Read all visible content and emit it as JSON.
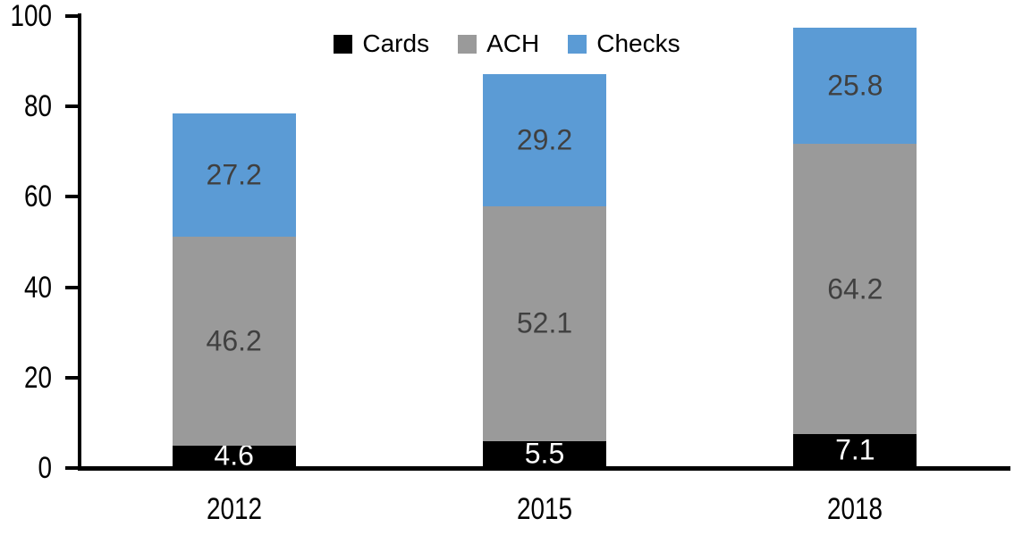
{
  "chart_data": {
    "type": "bar",
    "stacked": true,
    "title": "",
    "xlabel": "",
    "ylabel": "",
    "categories": [
      "2012",
      "2015",
      "2018"
    ],
    "series": [
      {
        "name": "Cards",
        "color": "#000000",
        "label_color": "#FFFFFF",
        "values": [
          4.6,
          5.5,
          7.1
        ]
      },
      {
        "name": "ACH",
        "color": "#9A9A9A",
        "label_color": "#404040",
        "values": [
          46.2,
          52.1,
          64.2
        ]
      },
      {
        "name": "Checks",
        "color": "#5B9BD5",
        "label_color": "#404040",
        "values": [
          27.2,
          29.2,
          25.8
        ]
      }
    ],
    "totals": [
      78.0,
      86.8,
      97.1
    ],
    "y_axis": {
      "ticks": [
        0,
        20,
        40,
        60,
        80,
        100
      ],
      "min": 0,
      "max": 100
    },
    "ylim": [
      0,
      100
    ],
    "grid": false,
    "legend_position": "top-center",
    "legend_entries": [
      "Cards",
      "ACH",
      "Checks"
    ],
    "axis_color": "#000000",
    "background_color": "#FFFFFF"
  }
}
